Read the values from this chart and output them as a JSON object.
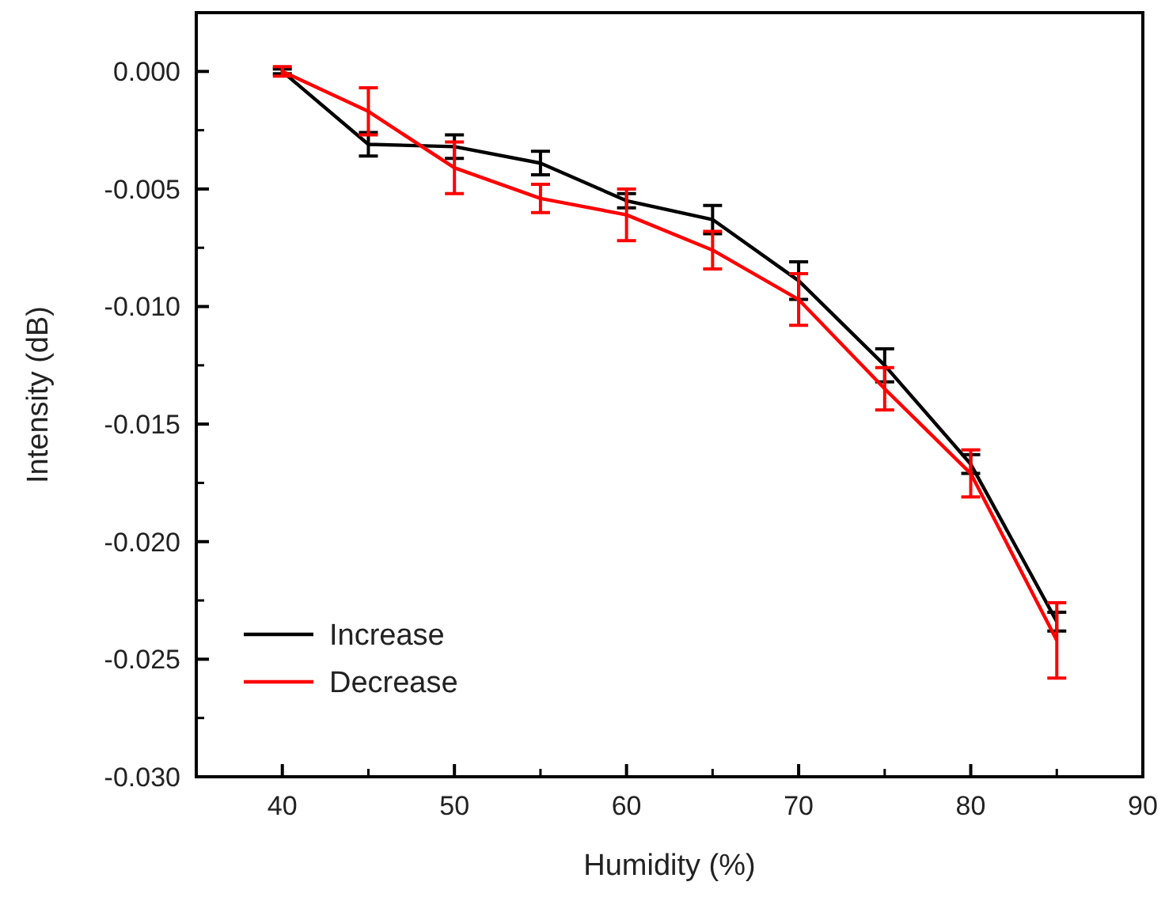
{
  "chart_data": {
    "type": "line",
    "xlabel": "Humidity (%)",
    "ylabel": "Intensity (dB)",
    "x": [
      40,
      45,
      50,
      55,
      60,
      65,
      70,
      75,
      80,
      85
    ],
    "series": [
      {
        "name": "Increase",
        "color": "#000000",
        "values": [
          0,
          -0.0031,
          -0.0032,
          -0.0039,
          -0.0055,
          -0.0063,
          -0.0089,
          -0.0125,
          -0.0167,
          -0.0234
        ],
        "errors": [
          0.0001,
          0.0005,
          0.0005,
          0.0005,
          0.0003,
          0.0006,
          0.0008,
          0.0007,
          0.0004,
          0.0004
        ]
      },
      {
        "name": "Decrease",
        "color": "#ff0000",
        "values": [
          0,
          -0.0017,
          -0.0041,
          -0.0054,
          -0.0061,
          -0.0076,
          -0.0097,
          -0.0135,
          -0.0171,
          -0.0242
        ],
        "errors": [
          0.0002,
          0.001,
          0.0011,
          0.0006,
          0.0011,
          0.0008,
          0.0011,
          0.0009,
          0.001,
          0.0016
        ]
      }
    ],
    "xlim": [
      35,
      90
    ],
    "xticks": [
      40,
      50,
      60,
      70,
      80,
      90
    ],
    "ylim": [
      -0.03,
      0.0025
    ],
    "yticks": [
      {
        "value": 0,
        "label": "0.000"
      },
      {
        "value": -0.005,
        "label": "-0.005"
      },
      {
        "value": -0.01,
        "label": "-0.010"
      },
      {
        "value": -0.015,
        "label": "-0.015"
      },
      {
        "value": -0.02,
        "label": "-0.020"
      },
      {
        "value": -0.025,
        "label": "-0.025"
      },
      {
        "value": -0.03,
        "label": "-0.030"
      }
    ],
    "legend": "bottom left",
    "grid": false,
    "line_style": "solid"
  }
}
